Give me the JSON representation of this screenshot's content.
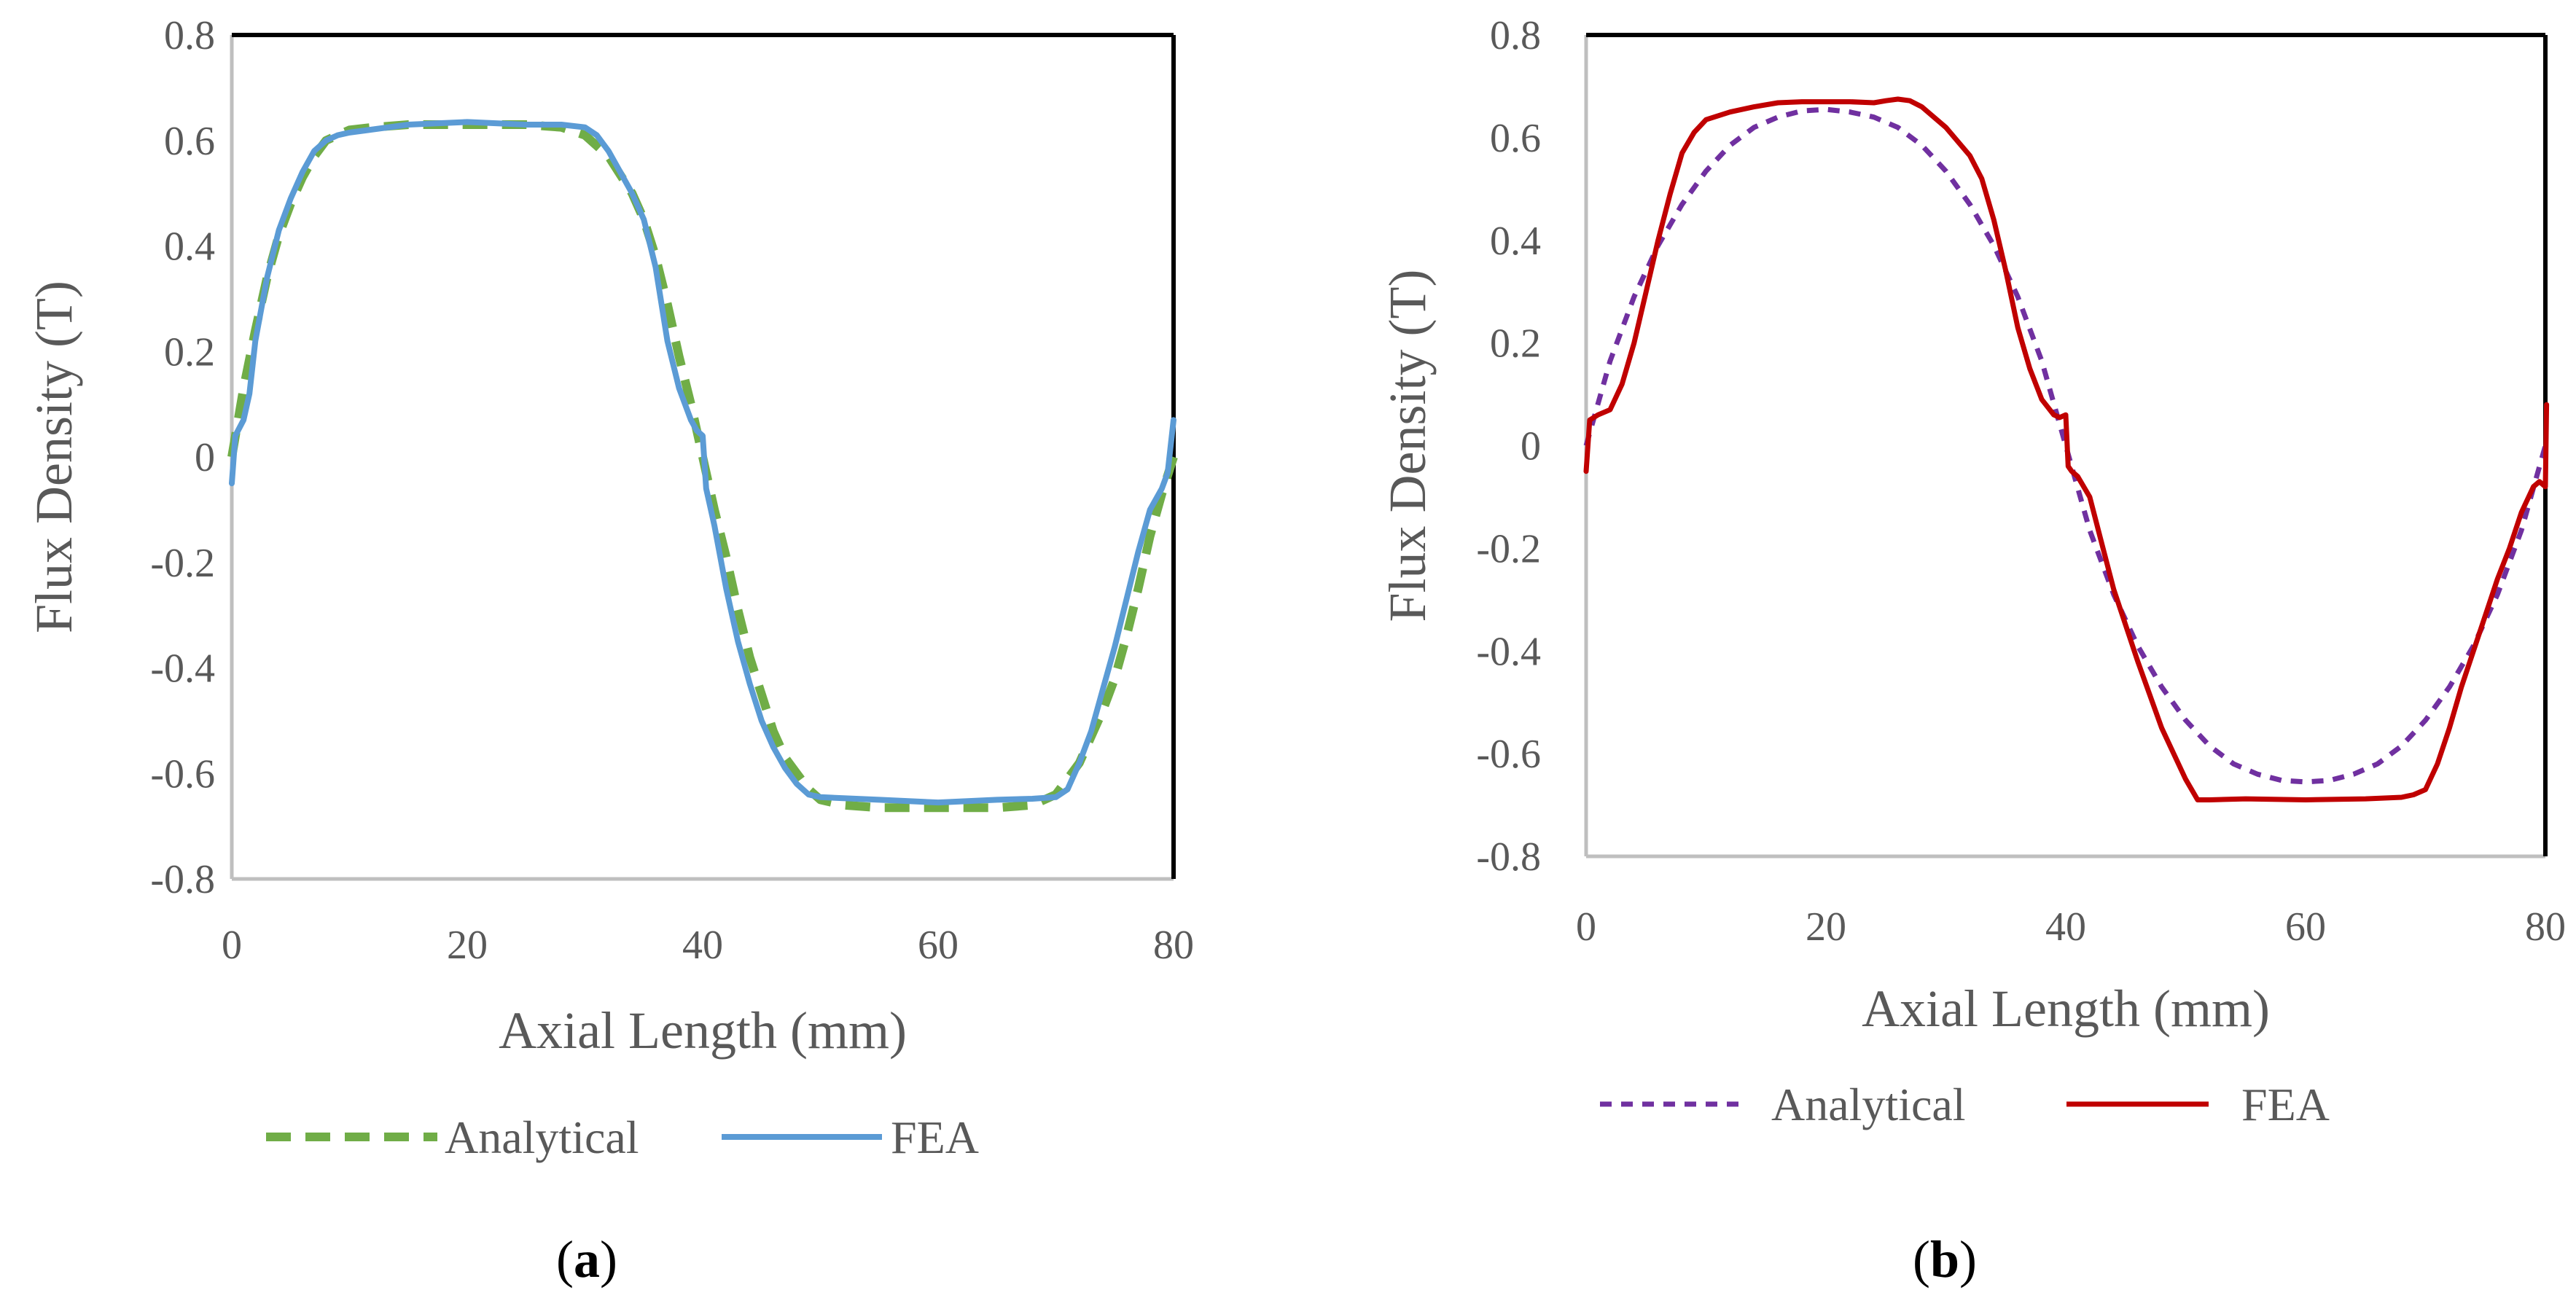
{
  "chart_data": [
    {
      "id": "a",
      "type": "line",
      "xlabel": "Axial Length (mm)",
      "ylabel": "Flux Density (T)",
      "xlim": [
        0,
        80
      ],
      "ylim": [
        -0.8,
        0.8
      ],
      "x_ticks": [
        0,
        20,
        40,
        60,
        80
      ],
      "y_ticks": [
        -0.8,
        -0.6,
        -0.4,
        -0.2,
        0,
        0.2,
        0.4,
        0.6,
        0.8
      ],
      "x_tick_labels": [
        "0",
        "20",
        "40",
        "60",
        "80"
      ],
      "y_tick_labels": [
        "-0.8",
        "-0.6",
        "-0.4",
        "-0.2",
        "0",
        "0.2",
        "0.4",
        "0.6",
        "0.8"
      ],
      "grid": false,
      "legend": "bottom",
      "caption": "a",
      "series": [
        {
          "name": "Analytical",
          "color": "#70AD47",
          "style": "long-dash",
          "x": [
            0,
            1,
            2,
            3,
            4,
            5,
            6,
            7,
            8,
            9,
            10,
            12,
            15,
            20,
            25,
            28,
            30,
            32,
            34,
            35,
            36,
            37,
            38,
            39,
            40,
            41,
            42,
            43,
            44,
            45,
            46,
            47,
            48,
            49,
            50,
            52,
            55,
            60,
            65,
            68,
            70,
            72,
            74,
            75,
            76,
            77,
            78,
            79,
            80
          ],
          "y": [
            0.0,
            0.13,
            0.24,
            0.34,
            0.42,
            0.48,
            0.53,
            0.57,
            0.6,
            0.61,
            0.62,
            0.625,
            0.63,
            0.63,
            0.63,
            0.625,
            0.61,
            0.57,
            0.5,
            0.45,
            0.38,
            0.29,
            0.19,
            0.1,
            0.0,
            -0.1,
            -0.19,
            -0.29,
            -0.38,
            -0.45,
            -0.52,
            -0.57,
            -0.6,
            -0.63,
            -0.65,
            -0.66,
            -0.665,
            -0.665,
            -0.665,
            -0.66,
            -0.64,
            -0.58,
            -0.48,
            -0.42,
            -0.34,
            -0.25,
            -0.15,
            -0.07,
            0.0
          ]
        },
        {
          "name": "FEA",
          "color": "#5B9BD5",
          "style": "solid",
          "x": [
            0,
            0.3,
            1,
            1.5,
            2,
            3,
            4,
            5,
            6,
            7,
            8,
            9,
            10,
            15,
            20,
            25,
            28,
            30,
            31,
            32,
            34,
            35,
            36,
            37,
            38,
            39,
            39.5,
            40,
            40.3,
            41,
            42,
            43,
            44,
            45,
            46,
            47,
            48,
            49,
            50,
            55,
            60,
            65,
            68,
            70,
            71,
            72,
            73,
            74,
            75,
            76,
            77,
            78,
            79,
            79.5,
            80
          ],
          "y": [
            -0.05,
            0.04,
            0.07,
            0.12,
            0.22,
            0.34,
            0.43,
            0.49,
            0.54,
            0.58,
            0.6,
            0.61,
            0.615,
            0.63,
            0.635,
            0.63,
            0.63,
            0.625,
            0.61,
            0.58,
            0.5,
            0.45,
            0.36,
            0.22,
            0.13,
            0.07,
            0.05,
            0.04,
            -0.06,
            -0.13,
            -0.25,
            -0.35,
            -0.43,
            -0.5,
            -0.55,
            -0.59,
            -0.62,
            -0.64,
            -0.645,
            -0.65,
            -0.655,
            -0.65,
            -0.648,
            -0.645,
            -0.63,
            -0.58,
            -0.52,
            -0.44,
            -0.36,
            -0.27,
            -0.18,
            -0.1,
            -0.06,
            -0.03,
            0.07
          ]
        }
      ]
    },
    {
      "id": "b",
      "type": "line",
      "xlabel": "Axial Length (mm)",
      "ylabel": "Flux Density (T)",
      "xlim": [
        0,
        80
      ],
      "ylim": [
        -0.8,
        0.8
      ],
      "x_ticks": [
        0,
        20,
        40,
        60,
        80
      ],
      "y_ticks": [
        -0.8,
        -0.6,
        -0.4,
        -0.2,
        0,
        0.2,
        0.4,
        0.6,
        0.8
      ],
      "x_tick_labels": [
        "0",
        "20",
        "40",
        "60",
        "80"
      ],
      "y_tick_labels": [
        "-0.8",
        "-0.6",
        "-0.4",
        "-0.2",
        "0",
        "0.2",
        "0.4",
        "0.6",
        "0.8"
      ],
      "grid": false,
      "legend": "bottom",
      "caption": "b",
      "series": [
        {
          "name": "Analytical",
          "color": "#7030A0",
          "style": "short-dash",
          "x": [
            0,
            2,
            4,
            6,
            8,
            10,
            12,
            14,
            16,
            18,
            20,
            22,
            24,
            26,
            28,
            30,
            32,
            34,
            36,
            38,
            40,
            42,
            44,
            46,
            48,
            50,
            52,
            54,
            56,
            58,
            60,
            62,
            64,
            66,
            68,
            70,
            72,
            74,
            76,
            78,
            80
          ],
          "y": [
            0.0,
            0.165,
            0.29,
            0.39,
            0.47,
            0.535,
            0.585,
            0.62,
            0.64,
            0.652,
            0.655,
            0.65,
            0.64,
            0.62,
            0.585,
            0.535,
            0.47,
            0.39,
            0.29,
            0.165,
            0.0,
            -0.165,
            -0.29,
            -0.39,
            -0.47,
            -0.535,
            -0.585,
            -0.62,
            -0.64,
            -0.652,
            -0.655,
            -0.652,
            -0.64,
            -0.62,
            -0.585,
            -0.535,
            -0.47,
            -0.39,
            -0.29,
            -0.165,
            0.0
          ]
        },
        {
          "name": "FEA",
          "color": "#C00000",
          "style": "solid",
          "x": [
            0,
            0.3,
            1,
            2,
            3,
            4,
            5,
            6,
            7,
            8,
            9,
            10,
            12,
            14,
            16,
            18,
            20,
            22,
            24,
            25,
            26,
            27,
            28,
            30,
            32,
            33,
            34,
            35,
            36,
            37,
            38,
            39,
            39.5,
            40,
            40.2,
            40.5,
            41,
            42,
            43,
            44,
            46,
            48,
            50,
            51,
            52,
            55,
            60,
            65,
            68,
            69,
            70,
            71,
            72,
            73,
            74,
            75,
            76,
            77,
            78,
            79,
            79.5,
            80,
            80.1
          ],
          "y": [
            -0.05,
            0.05,
            0.06,
            0.07,
            0.12,
            0.2,
            0.3,
            0.4,
            0.49,
            0.57,
            0.61,
            0.635,
            0.65,
            0.66,
            0.668,
            0.67,
            0.67,
            0.67,
            0.668,
            0.672,
            0.675,
            0.672,
            0.66,
            0.62,
            0.565,
            0.52,
            0.44,
            0.34,
            0.23,
            0.15,
            0.09,
            0.06,
            0.055,
            0.06,
            -0.04,
            -0.05,
            -0.06,
            -0.1,
            -0.19,
            -0.28,
            -0.42,
            -0.55,
            -0.65,
            -0.69,
            -0.69,
            -0.688,
            -0.69,
            -0.688,
            -0.685,
            -0.68,
            -0.67,
            -0.62,
            -0.55,
            -0.47,
            -0.4,
            -0.33,
            -0.26,
            -0.2,
            -0.13,
            -0.08,
            -0.07,
            -0.08,
            0.08
          ]
        }
      ]
    }
  ],
  "captions": {
    "a": {
      "open": "(",
      "letter": "a",
      "close": ")"
    },
    "b": {
      "open": "(",
      "letter": "b",
      "close": ")"
    }
  }
}
